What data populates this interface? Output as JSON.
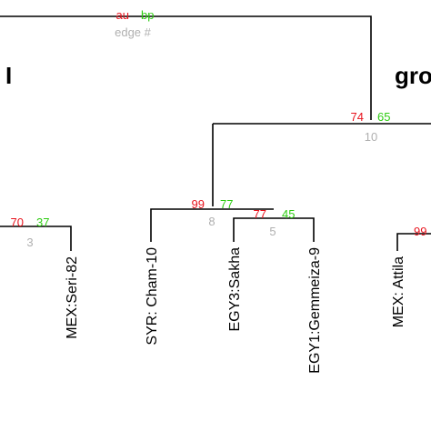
{
  "legend": {
    "au": "au",
    "bp": "bp",
    "edge": "edge #"
  },
  "colors": {
    "au": "#e8141e",
    "bp": "#2ecc12",
    "edge": "#b0b0b0"
  },
  "group_labels": [
    "I",
    "gro"
  ],
  "nodes": [
    {
      "au": "74",
      "bp": "65",
      "edge": "10"
    },
    {
      "au": "99",
      "bp": "77",
      "edge": "8"
    },
    {
      "au": "77",
      "bp": "45",
      "edge": "5"
    },
    {
      "au": "70",
      "bp": "37",
      "edge": "3"
    },
    {
      "au": "99",
      "bp": "",
      "edge": ""
    }
  ],
  "leaves": [
    "MEX:Seri-82",
    "SYR: Cham-10",
    "EGY3:Sakha",
    "EGY1:Gemmeiza-9",
    "MEX: Attila"
  ]
}
